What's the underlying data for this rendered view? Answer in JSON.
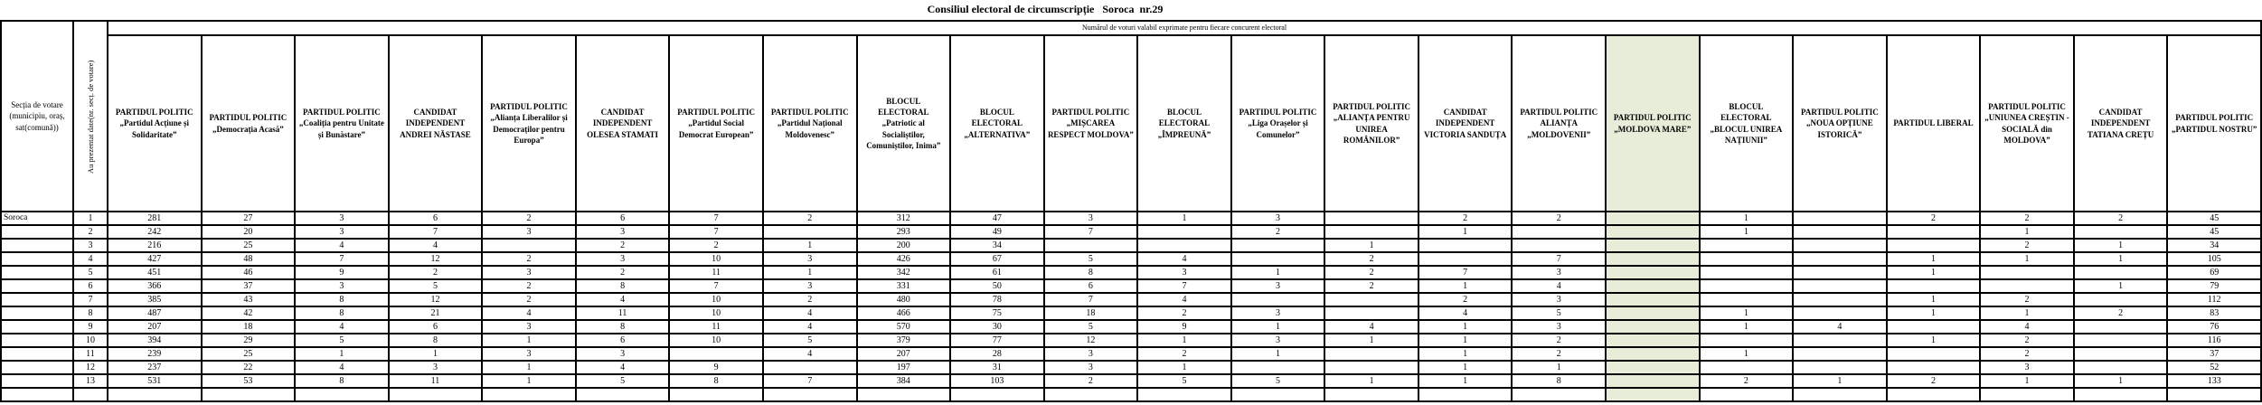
{
  "title": "Consiliul electoral de circumscripție   Soroca  nr.29",
  "table": {
    "corner_header": "Secția de votare (municipiu, oraș, sat(comună))",
    "rotated_header": "Au prezentat date(nr. secț. de votare)",
    "span_header": "Numărul de voturi valabil exprimate pentru fiecare concurent electoral",
    "highlight_column_index": 16,
    "highlight_color": "#e8edda",
    "competitors": [
      "PARTIDUL POLITIC „Partidul Acțiune și Solidaritate”",
      "PARTIDUL POLITIC „Democrația Acasă”",
      "PARTIDUL POLITIC „Coaliția pentru Unitate și Bunăstare”",
      "CANDIDAT INDEPENDENT ANDREI NĂSTASE",
      "PARTIDUL POLITIC „Alianța Liberalilor și Democraților pentru Europa”",
      "CANDIDAT INDEPENDENT OLESEA STAMATI",
      "PARTIDUL POLITIC „Partidul Social Democrat European”",
      "PARTIDUL POLITIC „Partidul Național Moldovenesc”",
      "BLOCUL ELECTORAL „Patriotic al Socialiștilor, Comuniștilor, Inima”",
      "BLOCUL ELECTORAL „ALTERNATIVA”",
      "PARTIDUL POLITIC „MIȘCAREA RESPECT MOLDOVA”",
      "BLOCUL ELECTORAL „ÎMPREUNĂ”",
      "PARTIDUL POLITIC „Liga Orașelor și Comunelor”",
      "PARTIDUL POLITIC „ALIANȚA PENTRU UNIREA ROMÂNILOR”",
      "CANDIDAT INDEPENDENT VICTORIA SANDUȚA",
      "PARTIDUL POLITIC ALIANȚA „MOLDOVENII”",
      "PARTIDUL POLITIC „MOLDOVA MARE”",
      "BLOCUL ELECTORAL „BLOCUL UNIREA NAȚIUNII”",
      "PARTIDUL POLITIC „NOUA OPȚIUNE ISTORICĂ”",
      "PARTIDUL LIBERAL",
      "PARTIDUL POLITIC „UNIUNEA CREȘTIN - SOCIALĂ din MOLDOVA”",
      "CANDIDAT INDEPENDENT TATIANA CREȚU",
      "PARTIDUL POLITIC „PARTIDUL NOSTRU”"
    ],
    "rows": [
      {
        "locality": "Soroca",
        "section": "1",
        "votes": [
          281,
          27,
          3,
          6,
          2,
          6,
          7,
          2,
          312,
          47,
          3,
          1,
          3,
          "",
          2,
          2,
          "",
          1,
          "",
          2,
          2,
          2,
          45
        ]
      },
      {
        "locality": "",
        "section": "2",
        "votes": [
          242,
          20,
          3,
          7,
          3,
          3,
          7,
          "",
          293,
          49,
          7,
          "",
          2,
          "",
          1,
          "",
          "",
          1,
          "",
          "",
          1,
          "",
          45
        ]
      },
      {
        "locality": "",
        "section": "3",
        "votes": [
          216,
          25,
          4,
          4,
          "",
          2,
          2,
          1,
          200,
          34,
          "",
          "",
          "",
          1,
          "",
          "",
          "",
          "",
          "",
          "",
          2,
          1,
          34
        ]
      },
      {
        "locality": "",
        "section": "4",
        "votes": [
          427,
          48,
          7,
          12,
          2,
          3,
          10,
          3,
          426,
          67,
          5,
          4,
          "",
          2,
          "",
          7,
          "",
          "",
          "",
          1,
          1,
          1,
          105
        ]
      },
      {
        "locality": "",
        "section": "5",
        "votes": [
          451,
          46,
          9,
          2,
          3,
          2,
          11,
          1,
          342,
          61,
          8,
          3,
          1,
          2,
          7,
          3,
          "",
          "",
          "",
          1,
          "",
          "",
          69
        ]
      },
      {
        "locality": "",
        "section": "6",
        "votes": [
          366,
          37,
          3,
          5,
          2,
          8,
          7,
          3,
          331,
          50,
          6,
          7,
          3,
          2,
          1,
          4,
          "",
          "",
          "",
          "",
          "",
          1,
          79
        ]
      },
      {
        "locality": "",
        "section": "7",
        "votes": [
          385,
          43,
          8,
          12,
          2,
          4,
          10,
          2,
          480,
          78,
          7,
          4,
          "",
          "",
          2,
          3,
          "",
          "",
          "",
          1,
          2,
          "",
          112
        ]
      },
      {
        "locality": "",
        "section": "8",
        "votes": [
          487,
          42,
          8,
          21,
          4,
          11,
          10,
          4,
          466,
          75,
          18,
          2,
          3,
          "",
          4,
          5,
          "",
          1,
          "",
          1,
          1,
          2,
          83
        ]
      },
      {
        "locality": "",
        "section": "9",
        "votes": [
          207,
          18,
          4,
          6,
          3,
          8,
          11,
          4,
          570,
          30,
          5,
          9,
          1,
          4,
          1,
          3,
          "",
          1,
          4,
          "",
          4,
          "",
          76
        ]
      },
      {
        "locality": "",
        "section": "10",
        "votes": [
          394,
          29,
          5,
          8,
          1,
          6,
          10,
          5,
          379,
          77,
          12,
          1,
          3,
          1,
          1,
          2,
          "",
          "",
          "",
          1,
          2,
          "",
          116
        ]
      },
      {
        "locality": "",
        "section": "11",
        "votes": [
          239,
          25,
          1,
          1,
          3,
          3,
          "",
          4,
          207,
          28,
          3,
          2,
          1,
          "",
          1,
          2,
          "",
          1,
          "",
          "",
          2,
          "",
          37
        ]
      },
      {
        "locality": "",
        "section": "12",
        "votes": [
          237,
          22,
          4,
          3,
          1,
          4,
          9,
          "",
          197,
          31,
          3,
          1,
          "",
          "",
          1,
          1,
          "",
          "",
          "",
          "",
          3,
          "",
          52
        ]
      },
      {
        "locality": "",
        "section": "13",
        "votes": [
          531,
          53,
          8,
          11,
          1,
          5,
          8,
          7,
          384,
          103,
          2,
          5,
          5,
          1,
          1,
          8,
          "",
          2,
          1,
          2,
          1,
          1,
          133
        ]
      }
    ]
  }
}
